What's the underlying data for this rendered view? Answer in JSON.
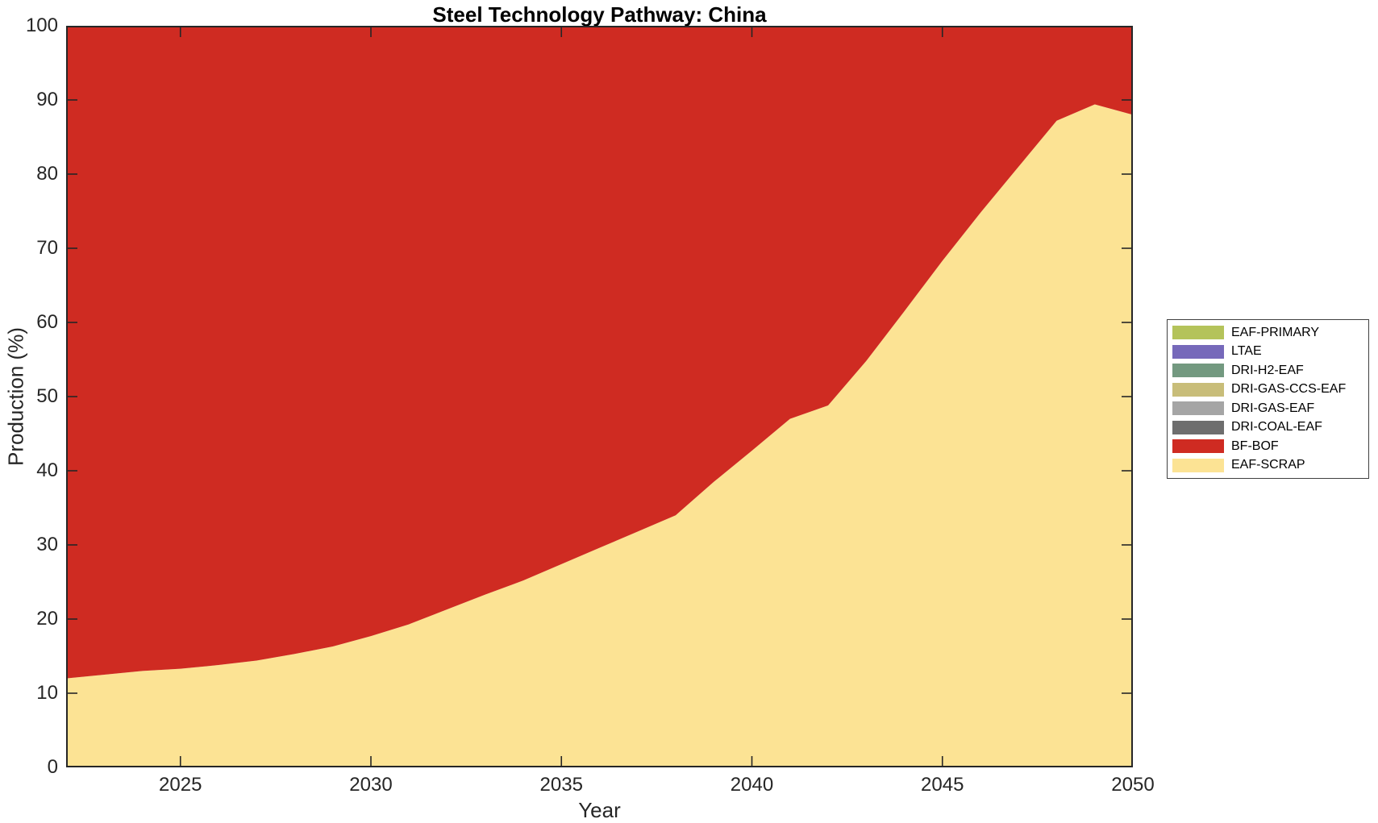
{
  "chart_data": {
    "type": "area",
    "stacked": true,
    "title": "Steel Technology Pathway: China",
    "xlabel": "Year",
    "ylabel": "Production (%)",
    "xlim": [
      2022,
      2050
    ],
    "ylim": [
      0,
      100
    ],
    "grid": false,
    "legend_position": "right-outside",
    "axis_color": "#262626",
    "xticks": [
      2025,
      2030,
      2035,
      2040,
      2045,
      2050
    ],
    "yticks": [
      0,
      10,
      20,
      30,
      40,
      50,
      60,
      70,
      80,
      90,
      100
    ],
    "x": [
      2022,
      2023,
      2024,
      2025,
      2026,
      2027,
      2028,
      2029,
      2030,
      2031,
      2032,
      2033,
      2034,
      2035,
      2036,
      2037,
      2038,
      2039,
      2040,
      2041,
      2042,
      2043,
      2044,
      2045,
      2046,
      2047,
      2048,
      2049,
      2050
    ],
    "series": [
      {
        "name": "EAF-SCRAP",
        "color": "#fce394",
        "values": [
          12.0,
          12.5,
          13.0,
          13.3,
          13.8,
          14.4,
          15.3,
          16.3,
          17.7,
          19.3,
          21.3,
          23.3,
          25.2,
          27.4,
          29.6,
          31.8,
          34.0,
          38.5,
          42.7,
          47.0,
          48.8,
          54.8,
          61.5,
          68.3,
          74.8,
          81.0,
          87.2,
          89.4,
          88.0
        ]
      },
      {
        "name": "BF-BOF",
        "color": "#cf2b22",
        "values": [
          88.0,
          87.5,
          87.0,
          86.7,
          86.2,
          85.6,
          84.7,
          83.7,
          82.3,
          80.7,
          78.7,
          76.7,
          74.8,
          72.6,
          70.4,
          68.2,
          66.0,
          61.5,
          57.3,
          53.0,
          51.2,
          45.2,
          38.5,
          31.7,
          25.2,
          19.0,
          12.8,
          10.6,
          12.0
        ]
      },
      {
        "name": "DRI-COAL-EAF",
        "color": "#6e6e6e",
        "values": [
          0,
          0,
          0,
          0,
          0,
          0,
          0,
          0,
          0,
          0,
          0,
          0,
          0,
          0,
          0,
          0,
          0,
          0,
          0,
          0,
          0,
          0,
          0,
          0,
          0,
          0,
          0,
          0,
          0
        ]
      },
      {
        "name": "DRI-GAS-EAF",
        "color": "#a5a5a5",
        "values": [
          0,
          0,
          0,
          0,
          0,
          0,
          0,
          0,
          0,
          0,
          0,
          0,
          0,
          0,
          0,
          0,
          0,
          0,
          0,
          0,
          0,
          0,
          0,
          0,
          0,
          0,
          0,
          0,
          0
        ]
      },
      {
        "name": "DRI-GAS-CCS-EAF",
        "color": "#c8bd79",
        "values": [
          0,
          0,
          0,
          0,
          0,
          0,
          0,
          0,
          0,
          0,
          0,
          0,
          0,
          0,
          0,
          0,
          0,
          0,
          0,
          0,
          0,
          0,
          0,
          0,
          0,
          0,
          0,
          0,
          0
        ]
      },
      {
        "name": "DRI-H2-EAF",
        "color": "#739980",
        "values": [
          0,
          0,
          0,
          0,
          0,
          0,
          0,
          0,
          0,
          0,
          0,
          0,
          0,
          0,
          0,
          0,
          0,
          0,
          0,
          0,
          0,
          0,
          0,
          0,
          0,
          0,
          0,
          0,
          0
        ]
      },
      {
        "name": "LTAE",
        "color": "#7669ba",
        "values": [
          0,
          0,
          0,
          0,
          0,
          0,
          0,
          0,
          0,
          0,
          0,
          0,
          0,
          0,
          0,
          0,
          0,
          0,
          0,
          0,
          0,
          0,
          0,
          0,
          0,
          0,
          0,
          0,
          0
        ]
      },
      {
        "name": "EAF-PRIMARY",
        "color": "#b4c35a",
        "values": [
          0,
          0,
          0,
          0,
          0,
          0,
          0,
          0,
          0,
          0,
          0,
          0,
          0,
          0,
          0,
          0,
          0,
          0,
          0,
          0,
          0,
          0,
          0,
          0,
          0,
          0,
          0,
          0,
          0
        ]
      }
    ],
    "legend_order_top_to_bottom": [
      "EAF-PRIMARY",
      "LTAE",
      "DRI-H2-EAF",
      "DRI-GAS-CCS-EAF",
      "DRI-GAS-EAF",
      "DRI-COAL-EAF",
      "BF-BOF",
      "EAF-SCRAP"
    ]
  }
}
